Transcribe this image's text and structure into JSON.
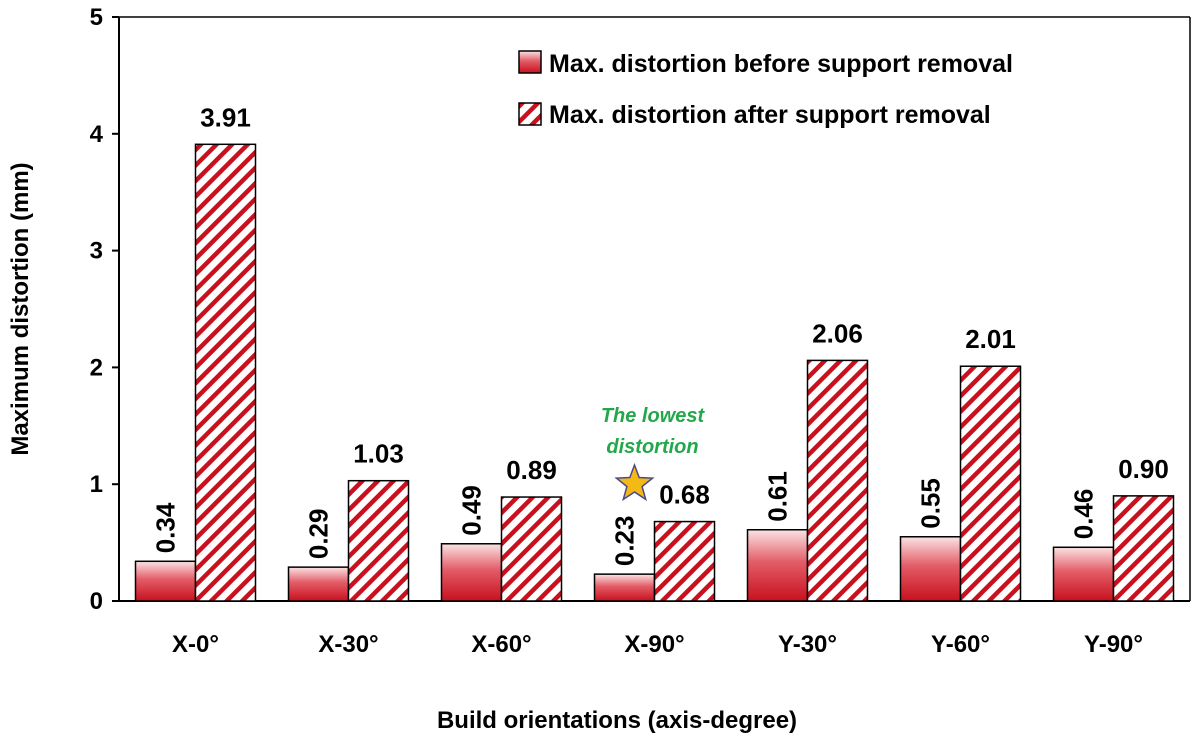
{
  "chart_data": {
    "type": "bar",
    "title": "",
    "xlabel": "Build orientations (axis-degree)",
    "ylabel": "Maximum distortion (mm)",
    "ylim": [
      0,
      5
    ],
    "yticks": [
      0,
      1,
      2,
      3,
      4,
      5
    ],
    "grid": false,
    "legend_position": "top-right",
    "categories": [
      "X-0°",
      "X-30°",
      "X-60°",
      "X-90°",
      "Y-30°",
      "Y-60°",
      "Y-90°"
    ],
    "series": [
      {
        "name": "Max. distortion before support removal",
        "values": [
          0.34,
          0.29,
          0.49,
          0.23,
          0.61,
          0.55,
          0.46
        ],
        "labels": [
          "0.34",
          "0.29",
          "0.49",
          "0.23",
          "0.61",
          "0.55",
          "0.46"
        ],
        "style": "gradient",
        "color": "#c8101e"
      },
      {
        "name": "Max. distortion after support removal",
        "values": [
          3.91,
          1.03,
          0.89,
          0.68,
          2.06,
          2.01,
          0.9
        ],
        "labels": [
          "3.91",
          "1.03",
          "0.89",
          "0.68",
          "2.06",
          "2.01",
          "0.90"
        ],
        "style": "hatched",
        "color": "#c8101e"
      }
    ],
    "annotation": {
      "text_lines": [
        "The lowest",
        "distortion"
      ],
      "category": "X-90°",
      "marker": "star-icon",
      "text_color": "#22a84a",
      "marker_color": "#f5b915"
    }
  }
}
